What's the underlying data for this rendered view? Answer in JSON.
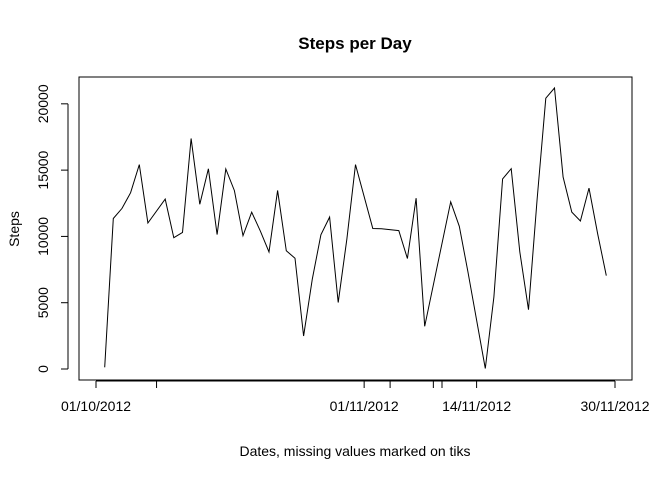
{
  "chart_data": {
    "type": "line",
    "title": "Steps per Day",
    "xlabel": "Dates, missing values marked on tiks",
    "ylabel": "Steps",
    "x_start": "2012-10-01",
    "x_end": "2012-11-30",
    "ylim": [
      0,
      21194
    ],
    "y_ticks": [
      0,
      5000,
      10000,
      15000,
      20000
    ],
    "x_ticks": [
      {
        "date": "2012-10-01",
        "label": "01/10/2012"
      },
      {
        "date": "2012-10-08",
        "label": ""
      },
      {
        "date": "2012-11-01",
        "label": "01/11/2012"
      },
      {
        "date": "2012-11-04",
        "label": ""
      },
      {
        "date": "2012-11-09",
        "label": ""
      },
      {
        "date": "2012-11-10",
        "label": ""
      },
      {
        "date": "2012-11-14",
        "label": "14/11/2012"
      },
      {
        "date": "2012-11-30",
        "label": "30/11/2012"
      }
    ],
    "grid": false,
    "series": [
      {
        "x": [
          "2012-10-02",
          "2012-10-03",
          "2012-10-04",
          "2012-10-05",
          "2012-10-06",
          "2012-10-07",
          "2012-10-09",
          "2012-10-10",
          "2012-10-11",
          "2012-10-12",
          "2012-10-13",
          "2012-10-14",
          "2012-10-15",
          "2012-10-16",
          "2012-10-17",
          "2012-10-18",
          "2012-10-19",
          "2012-10-20",
          "2012-10-21",
          "2012-10-22",
          "2012-10-23",
          "2012-10-24",
          "2012-10-25",
          "2012-10-26",
          "2012-10-27",
          "2012-10-28",
          "2012-10-29",
          "2012-10-30",
          "2012-10-31",
          "2012-11-02",
          "2012-11-03",
          "2012-11-05",
          "2012-11-06",
          "2012-11-07",
          "2012-11-08",
          "2012-11-11",
          "2012-11-12",
          "2012-11-13",
          "2012-11-15",
          "2012-11-16",
          "2012-11-17",
          "2012-11-18",
          "2012-11-19",
          "2012-11-20",
          "2012-11-21",
          "2012-11-22",
          "2012-11-23",
          "2012-11-24",
          "2012-11-25",
          "2012-11-26",
          "2012-11-27",
          "2012-11-28",
          "2012-11-29"
        ],
        "y": [
          126,
          11352,
          12116,
          13294,
          15420,
          11015,
          12811,
          9900,
          10304,
          17382,
          12426,
          15098,
          10139,
          15084,
          13452,
          10056,
          11829,
          10395,
          8821,
          13460,
          8918,
          8355,
          2492,
          6778,
          10119,
          11458,
          5018,
          9819,
          15414,
          10600,
          10571,
          10439,
          8334,
          12883,
          3219,
          12608,
          10765,
          7336,
          41,
          5441,
          14339,
          15110,
          8841,
          4472,
          12787,
          20427,
          21194,
          14478,
          11834,
          11162,
          13646,
          10183,
          7047
        ]
      }
    ]
  }
}
